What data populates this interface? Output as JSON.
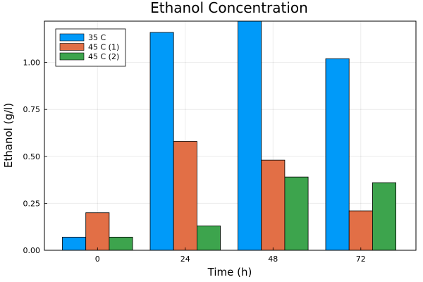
{
  "chart_data": {
    "type": "bar",
    "title": "Ethanol Concentration",
    "xlabel": "Time (h)",
    "ylabel": "Ethanol (g/l)",
    "categories": [
      "0",
      "24",
      "48",
      "72"
    ],
    "series": [
      {
        "name": "35 C",
        "color": "#009af9",
        "values": [
          0.07,
          1.16,
          1.22,
          1.02
        ]
      },
      {
        "name": "45 C (1)",
        "color": "#e26f46",
        "values": [
          0.2,
          0.58,
          0.48,
          0.21
        ]
      },
      {
        "name": "45 C (2)",
        "color": "#3da44d",
        "values": [
          0.07,
          0.13,
          0.39,
          0.36
        ]
      }
    ],
    "ylim": [
      0,
      1.22
    ],
    "yticks": [
      0.0,
      0.25,
      0.5,
      0.75,
      1.0
    ],
    "ytick_labels": [
      "0.00",
      "0.25",
      "0.50",
      "0.75",
      "1.00"
    ],
    "grid": true,
    "legend_position": "top-left"
  }
}
